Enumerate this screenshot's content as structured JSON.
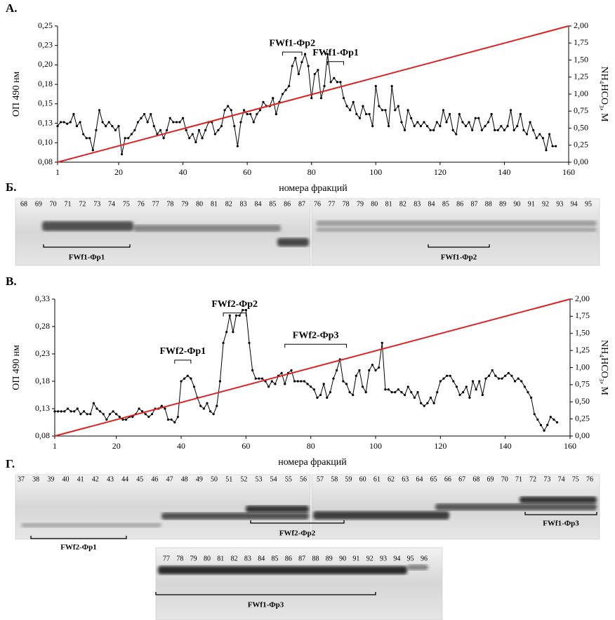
{
  "chart_data": [
    {
      "type": "line",
      "panel": "А.",
      "ylabel": "ОП 490 нм",
      "y2label": "NH₄HCO₃, М",
      "xlabel": "номера фракций",
      "xlim": [
        1,
        160
      ],
      "xticks": [
        1,
        20,
        40,
        60,
        80,
        100,
        120,
        140,
        160
      ],
      "ylim": [
        0.08,
        0.25
      ],
      "yticks": [
        {
          "value": 0.08,
          "label": "0,08"
        },
        {
          "value": 0.1043,
          "label": "0,10"
        },
        {
          "value": 0.1286,
          "label": "0,13"
        },
        {
          "value": 0.1529,
          "label": "0,15"
        },
        {
          "value": 0.1771,
          "label": "0,18"
        },
        {
          "value": 0.2014,
          "label": "0,20"
        },
        {
          "value": 0.2257,
          "label": "0,23"
        },
        {
          "value": 0.25,
          "label": "0,25"
        }
      ],
      "y2lim": [
        0,
        2
      ],
      "y2ticks": [
        {
          "value": 0,
          "label": "0,00"
        },
        {
          "value": 0.25,
          "label": "0,25"
        },
        {
          "value": 0.5,
          "label": "0,50"
        },
        {
          "value": 0.75,
          "label": "0,75"
        },
        {
          "value": 1,
          "label": "1,00"
        },
        {
          "value": 1.25,
          "label": "1,25"
        },
        {
          "value": 1.5,
          "label": "1,50"
        },
        {
          "value": 1.75,
          "label": "1,75"
        },
        {
          "value": 2,
          "label": "2,00"
        }
      ],
      "series": [
        {
          "color": "#000000",
          "markers": true,
          "x": [
            1,
            2,
            3,
            4,
            5,
            6,
            7,
            8,
            9,
            10,
            11,
            12,
            13,
            14,
            15,
            16,
            17,
            18,
            19,
            20,
            21,
            22,
            23,
            24,
            25,
            26,
            27,
            28,
            29,
            30,
            31,
            32,
            33,
            34,
            35,
            36,
            37,
            38,
            39,
            40,
            41,
            42,
            43,
            44,
            45,
            46,
            47,
            48,
            49,
            50,
            51,
            52,
            53,
            54,
            55,
            56,
            57,
            58,
            59,
            60,
            61,
            62,
            63,
            64,
            65,
            66,
            67,
            68,
            69,
            70,
            71,
            72,
            73,
            74,
            75,
            76,
            77,
            78,
            79,
            80,
            81,
            82,
            83,
            84,
            85,
            86,
            87,
            88,
            89,
            90,
            91,
            92,
            93,
            94,
            95,
            96,
            97,
            98,
            99,
            100,
            101,
            102,
            103,
            104,
            105,
            106,
            107,
            108,
            109,
            110,
            111,
            112,
            113,
            114,
            115,
            116,
            117,
            118,
            119,
            120,
            121,
            122,
            123,
            124,
            125,
            126,
            127,
            128,
            129,
            130,
            131,
            132,
            133,
            134,
            135,
            136,
            137,
            138,
            139,
            140,
            141,
            142,
            143,
            144,
            145,
            146,
            147,
            148,
            149,
            150,
            151,
            152,
            153,
            154,
            155,
            156
          ],
          "values": [
            0.125,
            0.13,
            0.13,
            0.128,
            0.13,
            0.14,
            0.125,
            0.13,
            0.115,
            0.11,
            0.11,
            0.095,
            0.12,
            0.145,
            0.13,
            0.125,
            0.13,
            0.125,
            0.12,
            0.125,
            0.09,
            0.11,
            0.11,
            0.115,
            0.12,
            0.13,
            0.135,
            0.14,
            0.13,
            0.14,
            0.125,
            0.115,
            0.12,
            0.11,
            0.12,
            0.135,
            0.13,
            0.13,
            0.13,
            0.135,
            0.12,
            0.11,
            0.115,
            0.105,
            0.12,
            0.11,
            0.12,
            0.13,
            0.13,
            0.115,
            0.12,
            0.125,
            0.145,
            0.15,
            0.145,
            0.125,
            0.1,
            0.13,
            0.145,
            0.14,
            0.14,
            0.13,
            0.14,
            0.145,
            0.155,
            0.15,
            0.15,
            0.16,
            0.14,
            0.155,
            0.165,
            0.17,
            0.175,
            0.2,
            0.21,
            0.19,
            0.205,
            0.215,
            0.2,
            0.16,
            0.19,
            0.195,
            0.16,
            0.175,
            0.215,
            0.18,
            0.185,
            0.18,
            0.18,
            0.16,
            0.15,
            0.145,
            0.155,
            0.14,
            0.135,
            0.15,
            0.14,
            0.14,
            0.125,
            0.175,
            0.15,
            0.145,
            0.145,
            0.125,
            0.175,
            0.145,
            0.15,
            0.13,
            0.12,
            0.145,
            0.135,
            0.125,
            0.13,
            0.125,
            0.13,
            0.125,
            0.12,
            0.12,
            0.13,
            0.125,
            0.145,
            0.13,
            0.14,
            0.12,
            0.115,
            0.14,
            0.13,
            0.125,
            0.13,
            0.12,
            0.135,
            0.135,
            0.12,
            0.125,
            0.13,
            0.14,
            0.12,
            0.12,
            0.125,
            0.12,
            0.125,
            0.145,
            0.12,
            0.125,
            0.14,
            0.12,
            0.115,
            0.13,
            0.12,
            0.11,
            0.115,
            0.11,
            0.095,
            0.115,
            0.1,
            0.1
          ]
        },
        {
          "color": "#e02020",
          "axis": "y2",
          "x": [
            1,
            160
          ],
          "values": [
            0,
            2
          ]
        }
      ],
      "annotations": [
        {
          "text": "FWf1-Фр2",
          "x0": 71,
          "x1": 77,
          "y": 0.228
        },
        {
          "text": "FWf1-Фр1",
          "x0": 85,
          "x1": 90,
          "y": 0.216
        }
      ]
    },
    {
      "type": "line",
      "panel": "В.",
      "ylabel": "ОП 490 нм",
      "y2label": "NH₄HCO₃, М",
      "xlabel": "номера фракций",
      "xlim": [
        1,
        160
      ],
      "xticks": [
        1,
        20,
        40,
        60,
        80,
        100,
        120,
        140,
        160
      ],
      "ylim": [
        0.08,
        0.33
      ],
      "yticks": [
        {
          "value": 0.08,
          "label": "0,08"
        },
        {
          "value": 0.13,
          "label": "0,13"
        },
        {
          "value": 0.18,
          "label": "0,18"
        },
        {
          "value": 0.23,
          "label": "0,23"
        },
        {
          "value": 0.28,
          "label": "0,28"
        },
        {
          "value": 0.33,
          "label": "0,33"
        }
      ],
      "y2lim": [
        0,
        2
      ],
      "y2ticks": [
        {
          "value": 0,
          "label": "0,00"
        },
        {
          "value": 0.25,
          "label": "0,25"
        },
        {
          "value": 0.5,
          "label": "0,50"
        },
        {
          "value": 0.75,
          "label": "0,75"
        },
        {
          "value": 1,
          "label": "1,00"
        },
        {
          "value": 1.25,
          "label": "1,25"
        },
        {
          "value": 1.5,
          "label": "1,50"
        },
        {
          "value": 1.75,
          "label": "1,75"
        },
        {
          "value": 2,
          "label": "2,00"
        }
      ],
      "series": [
        {
          "color": "#000000",
          "markers": true,
          "x": [
            1,
            2,
            3,
            4,
            5,
            6,
            7,
            8,
            9,
            10,
            11,
            12,
            13,
            14,
            15,
            16,
            17,
            18,
            19,
            20,
            21,
            22,
            23,
            24,
            25,
            26,
            27,
            28,
            29,
            30,
            31,
            32,
            33,
            34,
            35,
            36,
            37,
            38,
            39,
            40,
            41,
            42,
            43,
            44,
            45,
            46,
            47,
            48,
            49,
            50,
            51,
            52,
            53,
            54,
            55,
            56,
            57,
            58,
            59,
            60,
            61,
            62,
            63,
            64,
            65,
            66,
            67,
            68,
            69,
            70,
            71,
            72,
            73,
            74,
            75,
            76,
            77,
            78,
            79,
            80,
            81,
            82,
            83,
            84,
            85,
            86,
            87,
            88,
            89,
            90,
            91,
            92,
            93,
            94,
            95,
            96,
            97,
            98,
            99,
            100,
            101,
            102,
            103,
            104,
            105,
            106,
            107,
            108,
            109,
            110,
            111,
            112,
            113,
            114,
            115,
            116,
            117,
            118,
            119,
            120,
            121,
            122,
            123,
            124,
            125,
            126,
            127,
            128,
            129,
            130,
            131,
            132,
            133,
            134,
            135,
            136,
            137,
            138,
            139,
            140,
            141,
            142,
            143,
            144,
            145,
            146,
            147,
            148,
            149,
            150,
            151,
            152,
            153,
            154,
            155,
            156
          ],
          "values": [
            0.125,
            0.125,
            0.125,
            0.125,
            0.13,
            0.125,
            0.125,
            0.13,
            0.12,
            0.125,
            0.12,
            0.12,
            0.14,
            0.13,
            0.125,
            0.12,
            0.11,
            0.12,
            0.125,
            0.12,
            0.115,
            0.11,
            0.11,
            0.115,
            0.115,
            0.12,
            0.13,
            0.125,
            0.12,
            0.115,
            0.12,
            0.13,
            0.13,
            0.135,
            0.13,
            0.11,
            0.11,
            0.105,
            0.115,
            0.18,
            0.185,
            0.19,
            0.185,
            0.17,
            0.15,
            0.135,
            0.13,
            0.14,
            0.125,
            0.12,
            0.135,
            0.18,
            0.25,
            0.27,
            0.3,
            0.27,
            0.3,
            0.3,
            0.31,
            0.31,
            0.25,
            0.2,
            0.185,
            0.185,
            0.185,
            0.18,
            0.17,
            0.18,
            0.175,
            0.19,
            0.195,
            0.175,
            0.195,
            0.2,
            0.18,
            0.18,
            0.18,
            0.18,
            0.175,
            0.17,
            0.165,
            0.15,
            0.155,
            0.175,
            0.15,
            0.16,
            0.185,
            0.2,
            0.22,
            0.18,
            0.175,
            0.16,
            0.155,
            0.19,
            0.2,
            0.17,
            0.16,
            0.2,
            0.21,
            0.2,
            0.205,
            0.25,
            0.165,
            0.165,
            0.16,
            0.16,
            0.165,
            0.16,
            0.155,
            0.17,
            0.16,
            0.15,
            0.16,
            0.14,
            0.135,
            0.14,
            0.15,
            0.14,
            0.16,
            0.18,
            0.185,
            0.19,
            0.19,
            0.18,
            0.17,
            0.155,
            0.16,
            0.17,
            0.15,
            0.18,
            0.165,
            0.18,
            0.155,
            0.185,
            0.19,
            0.2,
            0.19,
            0.185,
            0.185,
            0.19,
            0.195,
            0.19,
            0.18,
            0.185,
            0.18,
            0.17,
            0.16,
            0.15,
            0.12,
            0.11,
            0.1,
            0.09,
            0.1,
            0.115,
            0.11,
            0.105
          ]
        },
        {
          "color": "#e02020",
          "axis": "y2",
          "x": [
            1,
            160
          ],
          "values": [
            0,
            2
          ]
        }
      ],
      "annotations": [
        {
          "text": "FWf2-Фр2",
          "x0": 53,
          "x1": 60,
          "y": 0.32
        },
        {
          "text": "FWf2-Фр1",
          "x0": 38,
          "x1": 43,
          "y": 0.234
        },
        {
          "text": "FWf2-Фр3",
          "x0": 72,
          "x1": 91,
          "y": 0.263
        }
      ]
    }
  ],
  "gels": [
    {
      "panel": "Б.",
      "images": [
        {
          "lanes": [
            68,
            69,
            70,
            71,
            72,
            73,
            74,
            75,
            76,
            77,
            78,
            79,
            80,
            81,
            82,
            83,
            84,
            85,
            86,
            87
          ]
        },
        {
          "lanes": [
            76,
            77,
            78,
            79,
            80,
            81,
            82,
            83,
            84,
            85,
            86,
            87,
            88,
            89,
            90,
            91,
            92,
            93,
            94,
            95
          ]
        }
      ],
      "labels": [
        "FWf1-Фр1",
        "FWf1-Фр2"
      ]
    },
    {
      "panel": "Г.",
      "images": [
        {
          "lanes": [
            37,
            38,
            39,
            40,
            41,
            42,
            43,
            44,
            45,
            46,
            47,
            48,
            49,
            50,
            51,
            52,
            53,
            54,
            55,
            56
          ]
        },
        {
          "lanes": [
            57,
            58,
            59,
            60,
            61,
            62,
            63,
            64,
            65,
            66,
            67,
            68,
            69,
            70,
            71,
            72,
            73,
            74,
            75,
            76
          ]
        },
        {
          "lanes": [
            77,
            78,
            79,
            80,
            81,
            82,
            83,
            84,
            85,
            86,
            87,
            88,
            89,
            90,
            91,
            92,
            93,
            94,
            95,
            96
          ]
        }
      ],
      "labels": [
        "FWf2-Фр1",
        "FWf2-Фр2",
        "FWf1-Фр3",
        "FWf1-Фр3"
      ]
    }
  ]
}
